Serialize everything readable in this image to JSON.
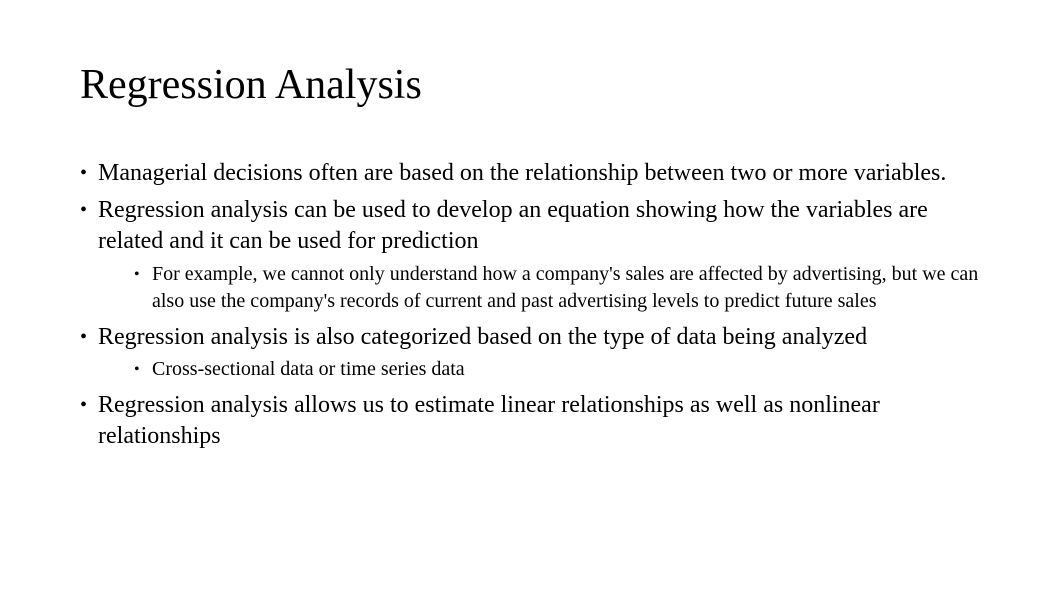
{
  "slide": {
    "title": "Regression Analysis",
    "bullets": [
      {
        "text": "Managerial decisions often are based on the relationship between two or more variables.",
        "children": []
      },
      {
        "text": "Regression analysis can be used to develop an equation showing how the variables are related and it can be used for prediction",
        "children": [
          "For example, we cannot only understand how a company's sales are affected by advertising, but we can also use the company's records of current and past advertising levels to predict future sales"
        ]
      },
      {
        "text": "Regression analysis is also categorized based on the type of data being analyzed",
        "children": [
          "Cross-sectional data or time series data"
        ]
      },
      {
        "text": "Regression analysis allows us to estimate linear relationships as well as nonlinear relationships",
        "children": []
      }
    ]
  },
  "style": {
    "background_color": "#ffffff",
    "text_color": "#000000",
    "font_family": "Times New Roman",
    "title_fontsize": 42,
    "level1_fontsize": 24,
    "level2_fontsize": 20
  }
}
